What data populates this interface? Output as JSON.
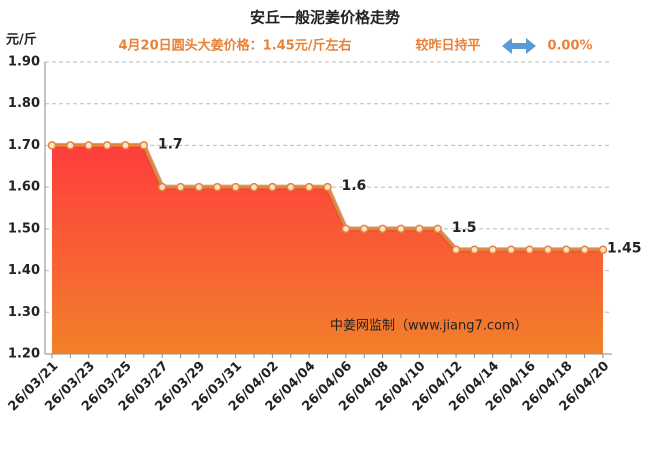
{
  "chart_data": {
    "type": "line",
    "title": "安丘一般泥姜价格走势",
    "subtitle": "4月20日圆头大姜价格：1.45元/斤左右",
    "change_text": "较昨日持平",
    "change_pct": "0.00%",
    "y_label": "元/斤",
    "watermark": "中姜网监制（www.jiang7.com）",
    "categories": [
      "26/03/21",
      null,
      "26/03/23",
      null,
      "26/03/25",
      null,
      "26/03/27",
      null,
      "26/03/29",
      null,
      "26/03/31",
      null,
      "26/04/02",
      null,
      "26/04/04",
      null,
      "26/04/06",
      null,
      "26/04/08",
      null,
      "26/04/10",
      null,
      "26/04/12",
      null,
      "26/04/14",
      null,
      "26/04/16",
      null,
      "26/04/18",
      null,
      "26/04/20"
    ],
    "values": [
      1.7,
      1.7,
      1.7,
      1.7,
      1.7,
      1.7,
      1.6,
      1.6,
      1.6,
      1.6,
      1.6,
      1.6,
      1.6,
      1.6,
      1.6,
      1.6,
      1.5,
      1.5,
      1.5,
      1.5,
      1.5,
      1.5,
      1.45,
      1.45,
      1.45,
      1.45,
      1.45,
      1.45,
      1.45,
      1.45,
      1.45
    ],
    "value_labels": [
      null,
      null,
      null,
      null,
      null,
      "1.7",
      null,
      null,
      null,
      null,
      null,
      null,
      null,
      null,
      null,
      "1.6",
      null,
      null,
      null,
      null,
      null,
      "1.5",
      null,
      null,
      null,
      null,
      null,
      null,
      null,
      null,
      "1.45"
    ],
    "color": "#e8823a",
    "ylim": [
      1.2,
      1.9
    ],
    "yticks": [
      {
        "value": 1.2,
        "label": "1.20"
      },
      {
        "value": 1.3,
        "label": "1.30"
      },
      {
        "value": 1.4,
        "label": "1.40"
      },
      {
        "value": 1.5,
        "label": "1.50"
      },
      {
        "value": 1.6,
        "label": "1.60"
      },
      {
        "value": 1.7,
        "label": "1.70"
      },
      {
        "value": 1.8,
        "label": "1.80"
      },
      {
        "value": 1.9,
        "label": "1.90"
      }
    ],
    "grid": true
  }
}
